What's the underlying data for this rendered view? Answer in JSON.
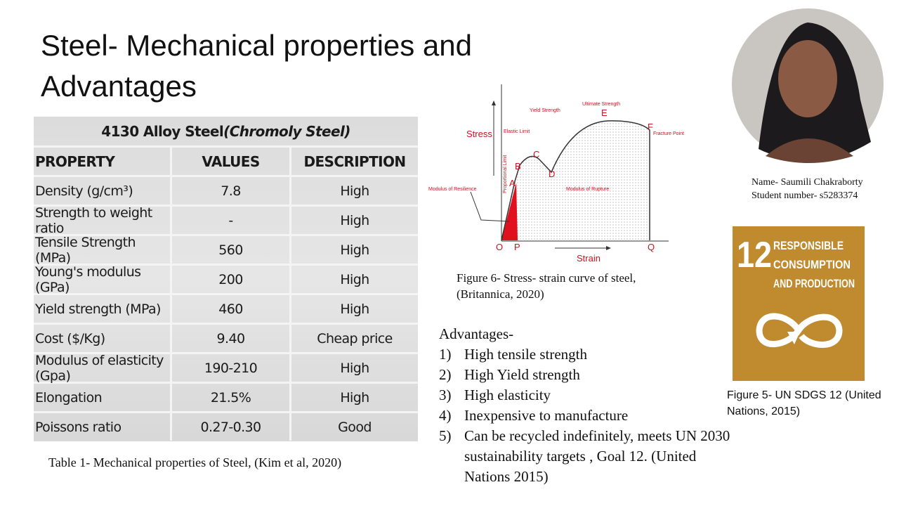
{
  "slide": {
    "title": [
      "Steel-  Mechanical properties and",
      "Advantages"
    ],
    "table": {
      "heading": [
        "4130 Alloy Steel ",
        "(Chromoly Steel)"
      ],
      "columns": [
        "PROPERTY",
        "VALUES",
        "DESCRIPTION"
      ],
      "rows": [
        [
          "Density (g/cm³)",
          "7.8",
          "High"
        ],
        [
          "Strength to weight ratio",
          "-",
          "High"
        ],
        [
          "Tensile Strength  (MPa)",
          "560",
          "High"
        ],
        [
          "Young's modulus (GPa)",
          "200",
          "High"
        ],
        [
          "Yield strength (MPa)",
          "460",
          "High"
        ],
        [
          "Cost ($/Kg)",
          "9.40",
          "Cheap price"
        ],
        [
          "Modulus of elasticity (Gpa)",
          "190-210",
          "High"
        ],
        [
          "Elongation",
          "21.5%",
          "High"
        ],
        [
          "Poissons ratio",
          "0.27-0.30",
          "Good"
        ]
      ],
      "caption": "Table 1- Mechanical properties of Steel, (Kim et al, 2020)"
    },
    "diagram": {
      "stress": "Stress",
      "strain": "Strain",
      "points": {
        "O": "O",
        "P": "P",
        "Q": "Q",
        "A": "A",
        "B": "B",
        "C": "C",
        "D": "D",
        "E": "E",
        "F": "F"
      },
      "labels": {
        "elastic_limit": "Elastic Limit",
        "yield_strength": "Yield Strength",
        "ultimate_strength": "Ultimate Strength",
        "fracture_point": "Fracture Point",
        "modulus_of_resilience": "Modulus of Resilience",
        "modulus_of_rupture": "Modulus of Rupture",
        "proportional_limit": "Proportional Limit"
      },
      "caption": [
        "Figure 6- Stress- strain curve of steel,",
        "(Britannica, 2020)"
      ]
    },
    "advantages": {
      "heading": "Advantages-",
      "items": [
        {
          "marker": "1)",
          "text": "High tensile strength"
        },
        {
          "marker": "2)",
          "text": "High Yield strength"
        },
        {
          "marker": "3)",
          "text": "High elasticity"
        },
        {
          "marker": "4)",
          "text": "Inexpensive to manufacture"
        },
        {
          "marker": "5)",
          "text": "Can be recycled indefinitely, meets UN 2030 sustainability targets , Goal 12. (United Nations 2015)"
        }
      ]
    },
    "presenter": {
      "name": "Name- Saumili Chakraborty",
      "student_number": "Student number- s5283374"
    },
    "sdg": {
      "number": "12",
      "label": [
        "RESPONSIBLE",
        "CONSUMPTION",
        "AND PRODUCTION"
      ],
      "caption": "Figure 5- UN SDGS 12 (United Nations, 2015)"
    }
  }
}
